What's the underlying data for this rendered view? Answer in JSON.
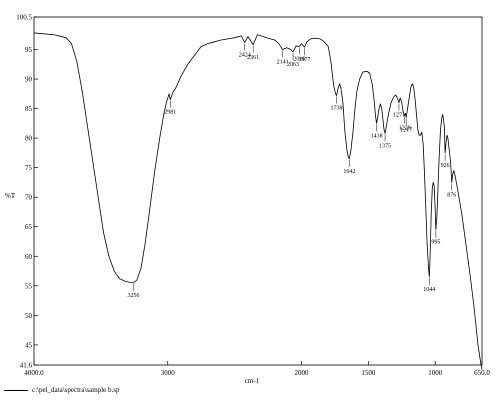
{
  "chart_data": {
    "type": "line",
    "xlabel": "cm-1",
    "ylabel": "%T",
    "xlim": [
      4000.0,
      650.0
    ],
    "ylim": [
      41.6,
      100.5
    ],
    "x_ticks": [
      4000.0,
      3000,
      2000,
      1500,
      1000,
      650.0
    ],
    "x_tick_labels": [
      "4000.0",
      "3000",
      "2000",
      "1500",
      "1000",
      "650.0"
    ],
    "y_ticks": [
      100.5,
      95,
      90,
      85,
      80,
      75,
      70,
      65,
      60,
      55,
      50,
      45,
      41.6
    ],
    "y_tick_labels": [
      "100.5",
      "95",
      "90",
      "85",
      "80",
      "75",
      "70",
      "65",
      "60",
      "55",
      "50",
      "45",
      "41.6"
    ],
    "grid": false,
    "series": [
      {
        "color": "#000000",
        "points": [
          [
            4000,
            97.8
          ],
          [
            3850,
            97.5
          ],
          [
            3760,
            97.0
          ],
          [
            3720,
            96.0
          ],
          [
            3680,
            93.0
          ],
          [
            3640,
            88.0
          ],
          [
            3600,
            82.0
          ],
          [
            3560,
            76.0
          ],
          [
            3520,
            70.0
          ],
          [
            3480,
            64.0
          ],
          [
            3440,
            60.0
          ],
          [
            3400,
            57.5
          ],
          [
            3360,
            56.2
          ],
          [
            3320,
            55.8
          ],
          [
            3290,
            55.6
          ],
          [
            3256,
            55.5
          ],
          [
            3230,
            56.0
          ],
          [
            3200,
            58.0
          ],
          [
            3170,
            62.0
          ],
          [
            3140,
            67.0
          ],
          [
            3100,
            74.0
          ],
          [
            3060,
            80.0
          ],
          [
            3030,
            84.0
          ],
          [
            3010,
            86.0
          ],
          [
            2990,
            87.5
          ],
          [
            2981,
            86.5
          ],
          [
            2960,
            87.8
          ],
          [
            2940,
            88.5
          ],
          [
            2900,
            90.5
          ],
          [
            2850,
            92.5
          ],
          [
            2800,
            94.0
          ],
          [
            2750,
            95.5
          ],
          [
            2700,
            96.0
          ],
          [
            2650,
            96.3
          ],
          [
            2600,
            96.6
          ],
          [
            2550,
            96.8
          ],
          [
            2500,
            97.0
          ],
          [
            2450,
            97.3
          ],
          [
            2424,
            96.2
          ],
          [
            2400,
            97.2
          ],
          [
            2361,
            95.8
          ],
          [
            2330,
            97.5
          ],
          [
            2300,
            97.3
          ],
          [
            2250,
            96.9
          ],
          [
            2200,
            96.6
          ],
          [
            2170,
            96.0
          ],
          [
            2141,
            95.0
          ],
          [
            2110,
            95.3
          ],
          [
            2080,
            95.0
          ],
          [
            2063,
            94.6
          ],
          [
            2040,
            95.6
          ],
          [
            2016,
            95.5
          ],
          [
            2000,
            96.0
          ],
          [
            1977,
            95.4
          ],
          [
            1960,
            96.3
          ],
          [
            1930,
            96.8
          ],
          [
            1900,
            96.9
          ],
          [
            1860,
            96.8
          ],
          [
            1830,
            96.3
          ],
          [
            1800,
            95.5
          ],
          [
            1780,
            93.0
          ],
          [
            1760,
            89.0
          ],
          [
            1745,
            87.5
          ],
          [
            1738,
            87.2
          ],
          [
            1725,
            88.5
          ],
          [
            1715,
            89.2
          ],
          [
            1705,
            88.5
          ],
          [
            1690,
            86.0
          ],
          [
            1675,
            81.0
          ],
          [
            1660,
            78.0
          ],
          [
            1650,
            76.8
          ],
          [
            1642,
            76.5
          ],
          [
            1630,
            78.0
          ],
          [
            1615,
            81.0
          ],
          [
            1600,
            85.0
          ],
          [
            1585,
            88.0
          ],
          [
            1565,
            90.0
          ],
          [
            1540,
            91.2
          ],
          [
            1510,
            91.3
          ],
          [
            1490,
            91.0
          ],
          [
            1470,
            89.0
          ],
          [
            1455,
            86.0
          ],
          [
            1445,
            83.5
          ],
          [
            1438,
            82.5
          ],
          [
            1430,
            83.5
          ],
          [
            1420,
            85.0
          ],
          [
            1410,
            85.8
          ],
          [
            1400,
            85.0
          ],
          [
            1390,
            83.0
          ],
          [
            1383,
            81.5
          ],
          [
            1375,
            80.8
          ],
          [
            1365,
            82.0
          ],
          [
            1350,
            84.0
          ],
          [
            1330,
            86.0
          ],
          [
            1310,
            87.0
          ],
          [
            1295,
            87.3
          ],
          [
            1280,
            86.6
          ],
          [
            1271,
            86.0
          ],
          [
            1262,
            86.8
          ],
          [
            1250,
            86.0
          ],
          [
            1240,
            84.5
          ],
          [
            1228,
            83.8
          ],
          [
            1222,
            84.2
          ],
          [
            1217,
            83.5
          ],
          [
            1210,
            84.5
          ],
          [
            1200,
            86.0
          ],
          [
            1190,
            87.5
          ],
          [
            1180,
            88.8
          ],
          [
            1170,
            89.2
          ],
          [
            1160,
            88.5
          ],
          [
            1150,
            86.5
          ],
          [
            1140,
            84.0
          ],
          [
            1130,
            81.5
          ],
          [
            1120,
            80.5
          ],
          [
            1110,
            80.5
          ],
          [
            1100,
            81.0
          ],
          [
            1090,
            79.0
          ],
          [
            1080,
            74.0
          ],
          [
            1070,
            68.0
          ],
          [
            1060,
            62.0
          ],
          [
            1050,
            58.0
          ],
          [
            1044,
            56.5
          ],
          [
            1038,
            60.0
          ],
          [
            1030,
            67.0
          ],
          [
            1022,
            71.5
          ],
          [
            1015,
            72.5
          ],
          [
            1008,
            72.0
          ],
          [
            1000,
            68.0
          ],
          [
            995,
            64.5
          ],
          [
            988,
            66.5
          ],
          [
            980,
            71.0
          ],
          [
            970,
            77.0
          ],
          [
            960,
            81.5
          ],
          [
            950,
            83.5
          ],
          [
            945,
            84.0
          ],
          [
            940,
            83.5
          ],
          [
            932,
            82.0
          ],
          [
            926,
            77.5
          ],
          [
            920,
            79.0
          ],
          [
            912,
            80.5
          ],
          [
            905,
            80.0
          ],
          [
            895,
            78.0
          ],
          [
            885,
            76.0
          ],
          [
            876,
            72.5
          ],
          [
            868,
            74.0
          ],
          [
            860,
            74.5
          ],
          [
            850,
            73.5
          ],
          [
            830,
            71.0
          ],
          [
            800,
            67.0
          ],
          [
            770,
            62.0
          ],
          [
            740,
            57.0
          ],
          [
            710,
            51.5
          ],
          [
            680,
            45.0
          ],
          [
            660,
            42.0
          ],
          [
            650,
            40.8
          ]
        ]
      }
    ],
    "peak_labels": [
      {
        "x": 3256,
        "y": 55.5,
        "text": "3256"
      },
      {
        "x": 2981,
        "y": 86.5,
        "text": "2981"
      },
      {
        "x": 2424,
        "y": 96.2,
        "text": "2424"
      },
      {
        "x": 2361,
        "y": 95.8,
        "text": "2361"
      },
      {
        "x": 2141,
        "y": 95.0,
        "text": "2141"
      },
      {
        "x": 2063,
        "y": 94.6,
        "text": "2063"
      },
      {
        "x": 2016,
        "y": 95.5,
        "text": "2016"
      },
      {
        "x": 1977,
        "y": 95.4,
        "text": "1977"
      },
      {
        "x": 1738,
        "y": 87.2,
        "text": "1738"
      },
      {
        "x": 1642,
        "y": 76.5,
        "text": "1642"
      },
      {
        "x": 1438,
        "y": 82.5,
        "text": "1438"
      },
      {
        "x": 1375,
        "y": 80.8,
        "text": "1375"
      },
      {
        "x": 1271,
        "y": 86.0,
        "text": "1271"
      },
      {
        "x": 1228,
        "y": 83.8,
        "text": "1228"
      },
      {
        "x": 1217,
        "y": 83.5,
        "text": "1217"
      },
      {
        "x": 1044,
        "y": 56.5,
        "text": "1044"
      },
      {
        "x": 995,
        "y": 64.5,
        "text": "995"
      },
      {
        "x": 926,
        "y": 77.5,
        "text": "926"
      },
      {
        "x": 876,
        "y": 72.5,
        "text": "876"
      }
    ]
  },
  "footer": {
    "file_path": "c:\\pel_data\\spectra\\sample b.sp"
  }
}
